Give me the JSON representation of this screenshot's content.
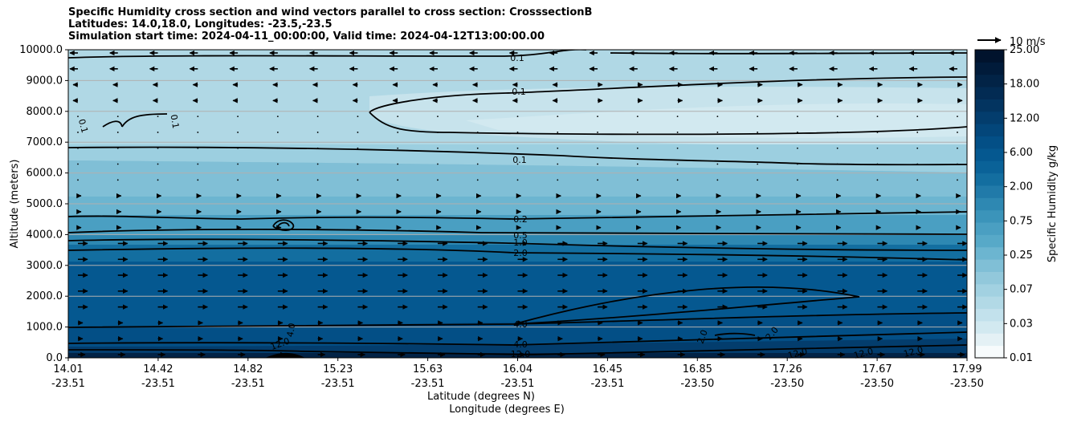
{
  "chart_data": {
    "type": "contour-cross-section",
    "title_lines": [
      "Specific Humidity cross section and wind vectors parallel to cross section: CrosssectionB",
      "Latitudes: 14.0,18.0, Longitudes: -23.5,-23.5",
      "Simulation start time: 2024-04-11_00:00:00, Valid time: 2024-04-12T13:00:00.00"
    ],
    "ylabel": "Altitude (meters)",
    "xlabel_lat": "Latitude (degrees N)",
    "xlabel_lon": "Longitude (degrees E)",
    "ylim": [
      0,
      10000
    ],
    "y_ticks": [
      "0.0",
      "1000.0",
      "2000.0",
      "3000.0",
      "4000.0",
      "5000.0",
      "6000.0",
      "7000.0",
      "8000.0",
      "9000.0",
      "10000.0"
    ],
    "x_ticks": [
      {
        "lat": "14.01",
        "lon": "-23.51",
        "frac": 0
      },
      {
        "lat": "14.42",
        "lon": "-23.51",
        "frac": 0.1
      },
      {
        "lat": "14.82",
        "lon": "-23.51",
        "frac": 0.2
      },
      {
        "lat": "15.23",
        "lon": "-23.51",
        "frac": 0.3
      },
      {
        "lat": "15.63",
        "lon": "-23.51",
        "frac": 0.4
      },
      {
        "lat": "16.04",
        "lon": "-23.51",
        "frac": 0.5
      },
      {
        "lat": "16.45",
        "lon": "-23.51",
        "frac": 0.6
      },
      {
        "lat": "16.85",
        "lon": "-23.50",
        "frac": 0.7
      },
      {
        "lat": "17.26",
        "lon": "-23.50",
        "frac": 0.8
      },
      {
        "lat": "17.67",
        "lon": "-23.50",
        "frac": 0.9
      },
      {
        "lat": "17.99",
        "lon": "-23.50",
        "frac": 1.0
      }
    ],
    "colorbar": {
      "label": "Specific Humidity g/kg",
      "tick_labels": [
        "0.01",
        "0.03",
        "0.07",
        "0.25",
        "0.75",
        "2.00",
        "6.00",
        "12.00",
        "18.00",
        "25.00"
      ],
      "level_colors": [
        "#f7fbfc",
        "#e4f1f5",
        "#d2e9f0",
        "#c2e1ec",
        "#b2d9e6",
        "#a2d1e1",
        "#92c8db",
        "#80bfd6",
        "#6cb5d0",
        "#57a9c8",
        "#4a9fc2",
        "#3b94ba",
        "#2e88b2",
        "#217aa9",
        "#136ea0",
        "#0a6298",
        "#055890",
        "#034f86",
        "#03467a",
        "#033d6d",
        "#033460",
        "#022b53",
        "#022346",
        "#011b3a",
        "#01132d"
      ]
    },
    "contour_labels": [
      "0.1",
      "0.1",
      "0.1",
      "0.1",
      "0.1",
      "0.2",
      "0.5",
      "1.0",
      "2.0",
      "4.0",
      "4.0",
      "12.0",
      "2.0",
      "2.0",
      "12.0",
      "12.0",
      "12.0",
      "4.0",
      "12.0"
    ],
    "quiver_key": "10 m/s"
  }
}
